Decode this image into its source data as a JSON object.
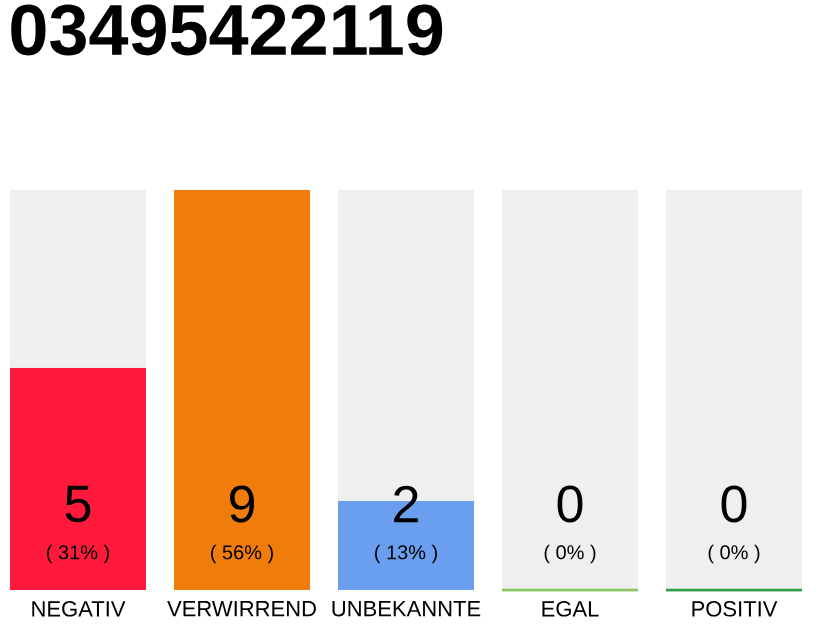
{
  "chart_data": {
    "type": "bar",
    "title": "03495422119",
    "stacked": true,
    "categories": [
      "NEGATIV",
      "VERWIRREND",
      "UNBEKANNTE",
      "EGAL",
      "POSITIV"
    ],
    "series": [
      {
        "colors": [
          "#ff1a3c",
          "#f07c0c",
          "#6a9ff0",
          "#8bc765",
          "#2ea04a"
        ],
        "values": [
          5,
          9,
          2,
          0,
          0
        ],
        "value_labels": [
          "5",
          "9",
          "2",
          null,
          null
        ]
      },
      {
        "color": "#efefef",
        "values": [
          4,
          0,
          7,
          9,
          9
        ]
      }
    ],
    "annotations": [
      "( 31% )",
      "( 56% )",
      "( 13% )",
      "( 0% )",
      "( 0% )",
      "0",
      "0"
    ]
  }
}
